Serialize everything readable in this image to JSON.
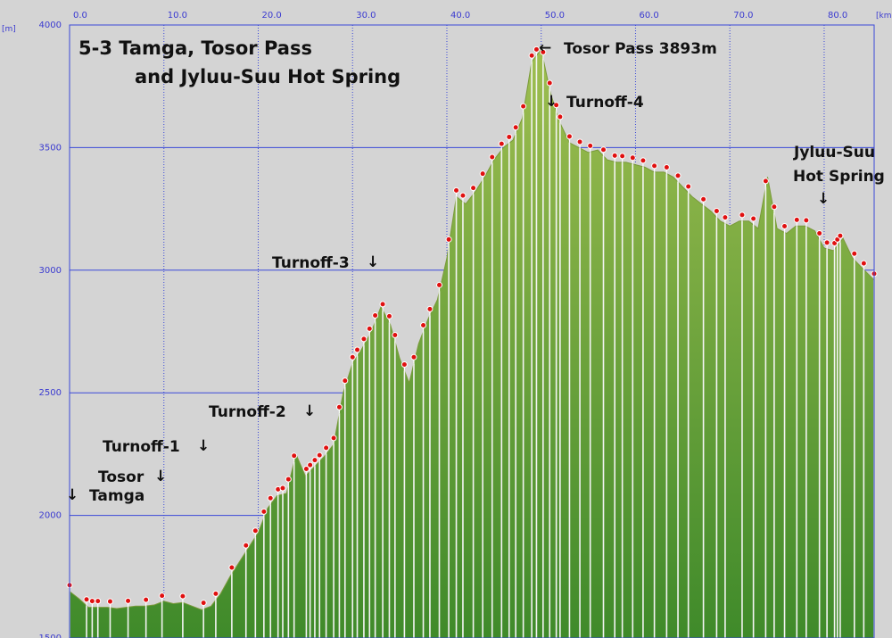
{
  "chart_data": {
    "type": "area",
    "title_line1": "5-3 Tamga, Tosor Pass",
    "title_line2": "and Jyluu-Suu Hot Spring",
    "y_unit": "[m]",
    "x_unit": "[km]",
    "xlim": [
      0,
      85.3
    ],
    "ylim": [
      1500,
      4000
    ],
    "x_ticks": [
      "0.0",
      "10.0",
      "20.0",
      "30.0",
      "40.0",
      "50.0",
      "60.0",
      "70.0",
      "80.0"
    ],
    "y_ticks": [
      "4000",
      "3500",
      "3000",
      "2500",
      "2000",
      "1500"
    ],
    "grid": true,
    "colors": {
      "fill_top": "#9fbe50",
      "fill_bottom": "#3f8a2a",
      "grid": "#3a48d8",
      "background": "#d4d4d4",
      "marker": "#e01010"
    },
    "elevation": {
      "x": [
        0,
        1,
        2,
        3,
        4,
        5,
        6,
        7,
        8,
        9,
        10,
        11,
        12,
        13,
        14,
        15,
        16,
        17,
        18,
        19,
        20,
        21,
        22,
        23,
        24,
        25,
        26,
        27,
        28,
        29,
        30,
        31,
        32,
        33,
        34,
        35,
        36,
        37,
        38,
        39,
        40,
        41,
        42,
        43,
        44,
        45,
        46,
        47,
        48,
        49,
        50,
        51,
        52,
        53,
        54,
        55,
        56,
        57,
        58,
        59,
        60,
        61,
        62,
        63,
        64,
        65,
        66,
        67,
        68,
        69,
        70,
        71,
        72,
        73,
        74,
        75,
        76,
        77,
        78,
        79,
        80,
        81,
        82,
        83,
        84,
        85.3
      ],
      "y": [
        1690,
        1660,
        1625,
        1625,
        1625,
        1620,
        1625,
        1630,
        1630,
        1635,
        1650,
        1640,
        1645,
        1630,
        1615,
        1630,
        1680,
        1750,
        1810,
        1870,
        1930,
        2030,
        2080,
        2090,
        2250,
        2160,
        2200,
        2240,
        2290,
        2500,
        2620,
        2680,
        2750,
        2850,
        2780,
        2640,
        2540,
        2700,
        2800,
        2880,
        3050,
        3300,
        3270,
        3320,
        3380,
        3450,
        3500,
        3530,
        3620,
        3850,
        3900,
        3720,
        3600,
        3520,
        3500,
        3480,
        3490,
        3450,
        3440,
        3440,
        3430,
        3420,
        3400,
        3400,
        3380,
        3340,
        3300,
        3270,
        3240,
        3200,
        3180,
        3200,
        3200,
        3170,
        3380,
        3170,
        3150,
        3180,
        3180,
        3160,
        3090,
        3080,
        3130,
        3050,
        3010,
        2960
      ]
    },
    "waypoints_x": [
      0,
      1.8,
      2.4,
      3,
      4.3,
      6.2,
      8.1,
      9.8,
      12,
      14.2,
      15.5,
      17.2,
      18.7,
      19.7,
      20.6,
      21.3,
      22.1,
      22.6,
      23.2,
      23.8,
      25.1,
      25.5,
      26,
      26.5,
      27.2,
      28,
      28.6,
      29.2,
      30,
      30.5,
      31.2,
      31.8,
      32.4,
      33.2,
      33.9,
      34.5,
      35.5,
      36.5,
      37.5,
      38.2,
      39.2,
      40.2,
      41,
      41.7,
      42.8,
      43.8,
      44.8,
      45.8,
      46.6,
      47.3,
      48.1,
      49,
      49.5,
      50.2,
      50.9,
      51.6,
      52,
      53,
      54.1,
      55.2,
      56.6,
      57.8,
      58.6,
      59.7,
      60.8,
      62,
      63.3,
      64.5,
      65.6,
      67.2,
      68.6,
      69.5,
      71.3,
      72.5,
      73.8,
      74.7,
      75.8,
      77.1,
      78.1,
      79.5,
      80.3,
      81.1,
      81.4,
      81.7,
      83.2,
      84.2,
      85.3
    ],
    "annotations": {
      "tamga": "Tamga",
      "tosor": "Tosor",
      "turnoff1": "Turnoff-1",
      "turnoff2": "Turnoff-2",
      "turnoff3": "Turnoff-3",
      "turnoff4": "Turnoff-4",
      "tosor_pass": "Tosor Pass 3893m",
      "hot_spring_line1": "Jyluu-Suu",
      "hot_spring_line2": "Hot Spring",
      "arrow_down": "↓",
      "arrow_left": "←"
    }
  }
}
